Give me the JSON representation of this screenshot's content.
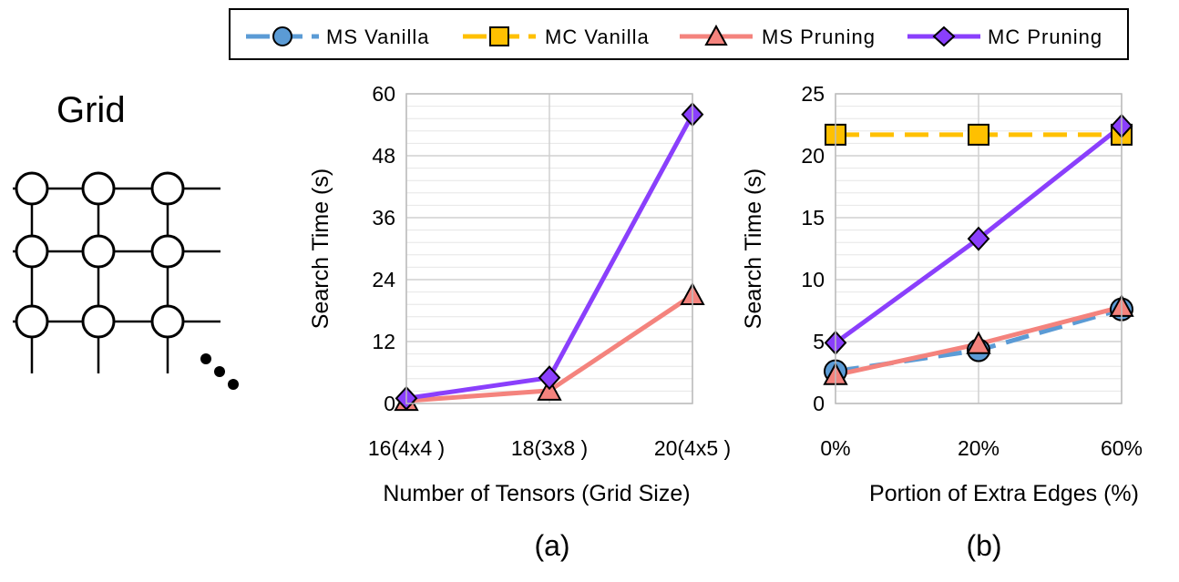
{
  "legend": [
    "MS Vanilla",
    "MC Vanilla",
    "MS Pruning",
    "MC Pruning"
  ],
  "diagram": {
    "title": "Grid"
  },
  "colors": {
    "ms_vanilla": "#5b9bd5",
    "mc_vanilla": "#ffc000",
    "ms_pruning": "#f4837d",
    "mc_pruning": "#8a3ffc",
    "grid": "#d0d0d0"
  },
  "chart_data": [
    {
      "type": "line",
      "panel_label": "(a)",
      "xlabel": "Number of Tensors (Grid Size)",
      "ylabel": "Search Time (s)",
      "categories": [
        "16(4x4 )",
        "18(3x8 )",
        "20(4x5 )"
      ],
      "ylim": [
        0,
        60
      ],
      "yticks": [
        0,
        12,
        24,
        36,
        48,
        60
      ],
      "grid": true,
      "series": [
        {
          "name": "MS Pruning",
          "values": [
            0.5,
            2.5,
            21.0
          ]
        },
        {
          "name": "MC Pruning",
          "values": [
            1.0,
            5.0,
            56.0
          ]
        }
      ]
    },
    {
      "type": "line",
      "panel_label": "(b)",
      "xlabel": "Portion of Extra Edges (%)",
      "ylabel": "Search Time (s)",
      "categories": [
        "0%",
        "20%",
        "60%"
      ],
      "ylim": [
        0,
        25
      ],
      "yticks": [
        0,
        5,
        10,
        15,
        20,
        25
      ],
      "grid": true,
      "series": [
        {
          "name": "MS Vanilla",
          "values": [
            2.6,
            4.3,
            7.6
          ]
        },
        {
          "name": "MC Vanilla",
          "values": [
            21.7,
            21.7,
            21.7
          ]
        },
        {
          "name": "MS Pruning",
          "values": [
            2.3,
            4.8,
            7.8
          ]
        },
        {
          "name": "MC Pruning",
          "values": [
            4.9,
            13.3,
            22.4
          ]
        }
      ]
    }
  ]
}
